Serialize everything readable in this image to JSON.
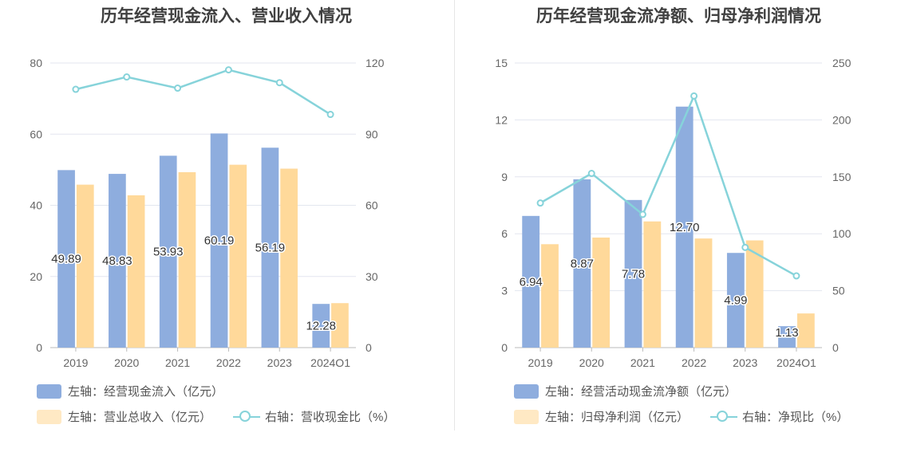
{
  "colors": {
    "bar_primary": "#8eadde",
    "bar_secondary": "#ffd99a",
    "line": "#86d3da",
    "grid": "#e3e6ef",
    "axis": "#666666"
  },
  "chart_data": [
    {
      "type": "bar",
      "title": "历年经营现金流入、营业收入情况",
      "categories": [
        "2019",
        "2020",
        "2021",
        "2022",
        "2023",
        "2024Q1"
      ],
      "y_left": {
        "ticks": [
          "0",
          "20",
          "40",
          "60",
          "80"
        ],
        "ylim": [
          0,
          80
        ]
      },
      "y_right": {
        "ticks": [
          "0",
          "30",
          "60",
          "90",
          "120"
        ],
        "ylim": [
          0,
          120
        ]
      },
      "grid": true,
      "legend_position": "bottom-left",
      "series": [
        {
          "name": "左轴：经营现金流入（亿元）",
          "axis": "left",
          "kind": "bar",
          "values": [
            49.89,
            48.83,
            53.93,
            60.19,
            56.19,
            12.28
          ],
          "labels": [
            "49.89",
            "48.83",
            "53.93",
            "60.19",
            "56.19",
            "12.28"
          ]
        },
        {
          "name": "左轴：营业总收入（亿元）",
          "axis": "left",
          "kind": "bar",
          "values": [
            45.8,
            42.8,
            49.3,
            51.4,
            50.3,
            12.5
          ]
        },
        {
          "name": "右轴：营收现金比（%）",
          "axis": "right",
          "kind": "line",
          "values": [
            108.9,
            114.1,
            109.4,
            117.1,
            111.7,
            98.3
          ]
        }
      ]
    },
    {
      "type": "bar",
      "title": "历年经营现金流净额、归母净利润情况",
      "categories": [
        "2019",
        "2020",
        "2021",
        "2022",
        "2023",
        "2024Q1"
      ],
      "y_left": {
        "ticks": [
          "0",
          "3",
          "6",
          "9",
          "12",
          "15"
        ],
        "ylim": [
          0,
          15
        ]
      },
      "y_right": {
        "ticks": [
          "0",
          "50",
          "100",
          "150",
          "200",
          "250"
        ],
        "ylim": [
          0,
          250
        ]
      },
      "grid": true,
      "legend_position": "bottom-left",
      "series": [
        {
          "name": "左轴：经营活动现金流净额（亿元）",
          "axis": "left",
          "kind": "bar",
          "values": [
            6.94,
            8.87,
            7.78,
            12.7,
            4.99,
            1.13
          ],
          "labels": [
            "6.94",
            "8.87",
            "7.78",
            "12.70",
            "4.99",
            "1.13"
          ]
        },
        {
          "name": "左轴：归母净利润（亿元）",
          "axis": "left",
          "kind": "bar",
          "values": [
            5.45,
            5.8,
            6.65,
            5.75,
            5.65,
            1.8
          ]
        },
        {
          "name": "右轴：净现比（%）",
          "axis": "right",
          "kind": "line",
          "values": [
            127,
            153,
            117,
            221,
            88,
            63
          ]
        }
      ]
    }
  ]
}
